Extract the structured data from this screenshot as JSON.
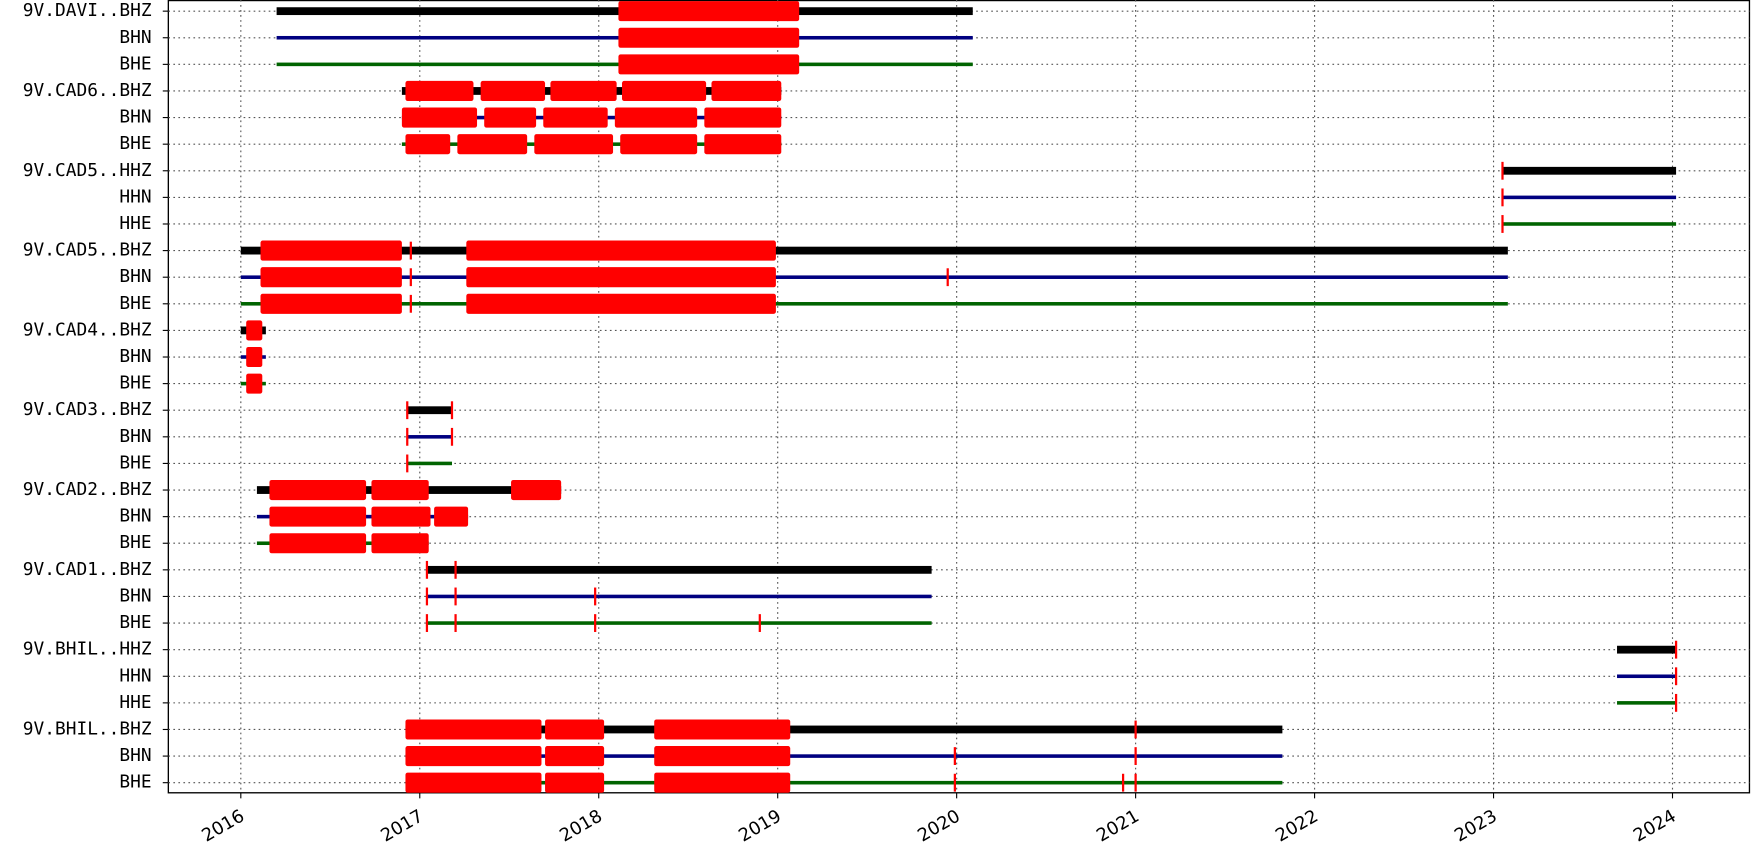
{
  "chart_data": {
    "type": "timeline",
    "xlim": [
      2015.595,
      2024.43
    ],
    "xticks": [
      2016,
      2017,
      2018,
      2019,
      2020,
      2021,
      2022,
      2023,
      2024
    ],
    "grid": true,
    "gap_color": "#ff0000",
    "rows": [
      {
        "label": "9V.DAVI..BHZ",
        "color": "#000000",
        "segments": [
          [
            2016.2,
            2020.09
          ]
        ],
        "gaps": [
          [
            2018.11,
            2019.12
          ]
        ]
      },
      {
        "label": "BHN",
        "color": "#000080",
        "segments": [
          [
            2016.2,
            2020.09
          ]
        ],
        "gaps": [
          [
            2018.11,
            2019.12
          ]
        ]
      },
      {
        "label": "BHE",
        "color": "#006400",
        "segments": [
          [
            2016.2,
            2020.09
          ]
        ],
        "gaps": [
          [
            2018.11,
            2019.12
          ]
        ]
      },
      {
        "label": "9V.CAD6..BHZ",
        "color": "#000000",
        "segments": [
          [
            2016.9,
            2019.02
          ]
        ],
        "gaps": [
          [
            2016.92,
            2017.3
          ],
          [
            2017.34,
            2017.7
          ],
          [
            2017.73,
            2018.1
          ],
          [
            2018.13,
            2018.6
          ],
          [
            2018.63,
            2019.02
          ]
        ]
      },
      {
        "label": "BHN",
        "color": "#000080",
        "segments": [
          [
            2016.9,
            2019.02
          ]
        ],
        "gaps": [
          [
            2016.9,
            2017.32
          ],
          [
            2017.36,
            2017.65
          ],
          [
            2017.69,
            2018.05
          ],
          [
            2018.09,
            2018.55
          ],
          [
            2018.59,
            2019.02
          ]
        ]
      },
      {
        "label": "BHE",
        "color": "#006400",
        "segments": [
          [
            2016.9,
            2019.02
          ]
        ],
        "gaps": [
          [
            2016.92,
            2017.17
          ],
          [
            2017.21,
            2017.6
          ],
          [
            2017.64,
            2018.08
          ],
          [
            2018.12,
            2018.55
          ],
          [
            2018.59,
            2019.02
          ]
        ]
      },
      {
        "label": "9V.CAD5..HHZ",
        "color": "#000000",
        "segments": [
          [
            2023.05,
            2024.02
          ]
        ],
        "gaps": [
          [
            2023.05,
            2023.05
          ]
        ]
      },
      {
        "label": "HHN",
        "color": "#000080",
        "segments": [
          [
            2023.05,
            2024.02
          ]
        ],
        "gaps": [
          [
            2023.05,
            2023.05
          ]
        ]
      },
      {
        "label": "HHE",
        "color": "#006400",
        "segments": [
          [
            2023.05,
            2024.02
          ]
        ],
        "gaps": [
          [
            2023.05,
            2023.05
          ]
        ]
      },
      {
        "label": "9V.CAD5..BHZ",
        "color": "#000000",
        "segments": [
          [
            2016.0,
            2023.08
          ]
        ],
        "gaps": [
          [
            2016.11,
            2016.9
          ],
          [
            2016.95,
            2016.95
          ],
          [
            2017.26,
            2018.99
          ]
        ]
      },
      {
        "label": "BHN",
        "color": "#000080",
        "segments": [
          [
            2016.0,
            2023.08
          ]
        ],
        "gaps": [
          [
            2016.11,
            2016.9
          ],
          [
            2016.95,
            2016.95
          ],
          [
            2017.26,
            2018.99
          ],
          [
            2019.95,
            2019.95
          ]
        ]
      },
      {
        "label": "BHE",
        "color": "#006400",
        "segments": [
          [
            2016.0,
            2023.08
          ]
        ],
        "gaps": [
          [
            2016.11,
            2016.9
          ],
          [
            2016.95,
            2016.95
          ],
          [
            2017.26,
            2018.99
          ]
        ]
      },
      {
        "label": "9V.CAD4..BHZ",
        "color": "#000000",
        "segments": [
          [
            2016.0,
            2016.14
          ]
        ],
        "gaps": [
          [
            2016.03,
            2016.12
          ]
        ]
      },
      {
        "label": "BHN",
        "color": "#000080",
        "segments": [
          [
            2016.0,
            2016.14
          ]
        ],
        "gaps": [
          [
            2016.03,
            2016.12
          ]
        ]
      },
      {
        "label": "BHE",
        "color": "#006400",
        "segments": [
          [
            2016.0,
            2016.14
          ]
        ],
        "gaps": [
          [
            2016.03,
            2016.12
          ]
        ]
      },
      {
        "label": "9V.CAD3..BHZ",
        "color": "#000000",
        "segments": [
          [
            2016.93,
            2017.18
          ]
        ],
        "gaps": [
          [
            2016.93,
            2016.93
          ],
          [
            2017.18,
            2017.18
          ]
        ]
      },
      {
        "label": "BHN",
        "color": "#000080",
        "segments": [
          [
            2016.93,
            2017.18
          ]
        ],
        "gaps": [
          [
            2016.93,
            2016.93
          ],
          [
            2017.18,
            2017.18
          ]
        ]
      },
      {
        "label": "BHE",
        "color": "#006400",
        "segments": [
          [
            2016.93,
            2017.18
          ]
        ],
        "gaps": [
          [
            2016.93,
            2016.93
          ]
        ]
      },
      {
        "label": "9V.CAD2..BHZ",
        "color": "#000000",
        "segments": [
          [
            2016.09,
            2017.79
          ]
        ],
        "gaps": [
          [
            2016.16,
            2016.7
          ],
          [
            2016.73,
            2017.05
          ],
          [
            2017.51,
            2017.79
          ]
        ]
      },
      {
        "label": "BHN",
        "color": "#000080",
        "segments": [
          [
            2016.09,
            2017.27
          ]
        ],
        "gaps": [
          [
            2016.16,
            2016.7
          ],
          [
            2016.73,
            2017.06
          ],
          [
            2017.08,
            2017.27
          ]
        ]
      },
      {
        "label": "BHE",
        "color": "#006400",
        "segments": [
          [
            2016.09,
            2017.05
          ]
        ],
        "gaps": [
          [
            2016.16,
            2016.7
          ],
          [
            2016.73,
            2017.05
          ]
        ]
      },
      {
        "label": "9V.CAD1..BHZ",
        "color": "#000000",
        "segments": [
          [
            2017.04,
            2019.86
          ]
        ],
        "gaps": [
          [
            2017.04,
            2017.04
          ],
          [
            2017.2,
            2017.2
          ]
        ]
      },
      {
        "label": "BHN",
        "color": "#000080",
        "segments": [
          [
            2017.04,
            2019.86
          ]
        ],
        "gaps": [
          [
            2017.04,
            2017.04
          ],
          [
            2017.2,
            2017.2
          ],
          [
            2017.98,
            2017.98
          ]
        ]
      },
      {
        "label": "BHE",
        "color": "#006400",
        "segments": [
          [
            2017.04,
            2019.86
          ]
        ],
        "gaps": [
          [
            2017.04,
            2017.04
          ],
          [
            2017.2,
            2017.2
          ],
          [
            2017.98,
            2017.98
          ],
          [
            2018.9,
            2018.9
          ]
        ]
      },
      {
        "label": "9V.BHIL..HHZ",
        "color": "#000000",
        "segments": [
          [
            2023.69,
            2024.02
          ]
        ],
        "gaps": [
          [
            2024.02,
            2024.02
          ]
        ]
      },
      {
        "label": "HHN",
        "color": "#000080",
        "segments": [
          [
            2023.69,
            2024.02
          ]
        ],
        "gaps": [
          [
            2024.02,
            2024.02
          ]
        ]
      },
      {
        "label": "HHE",
        "color": "#006400",
        "segments": [
          [
            2023.69,
            2024.02
          ]
        ],
        "gaps": [
          [
            2024.02,
            2024.02
          ]
        ]
      },
      {
        "label": "9V.BHIL..BHZ",
        "color": "#000000",
        "segments": [
          [
            2016.92,
            2021.82
          ]
        ],
        "gaps": [
          [
            2016.92,
            2017.68
          ],
          [
            2017.7,
            2018.03
          ],
          [
            2018.31,
            2019.07
          ],
          [
            2021.0,
            2021.0
          ]
        ]
      },
      {
        "label": "BHN",
        "color": "#000080",
        "segments": [
          [
            2016.92,
            2021.82
          ]
        ],
        "gaps": [
          [
            2016.92,
            2017.68
          ],
          [
            2017.7,
            2018.03
          ],
          [
            2018.31,
            2019.07
          ],
          [
            2019.99,
            2019.99
          ],
          [
            2021.0,
            2021.0
          ]
        ]
      },
      {
        "label": "BHE",
        "color": "#006400",
        "segments": [
          [
            2016.92,
            2021.82
          ]
        ],
        "gaps": [
          [
            2016.92,
            2017.68
          ],
          [
            2017.7,
            2018.03
          ],
          [
            2018.31,
            2019.07
          ],
          [
            2019.99,
            2019.99
          ],
          [
            2020.93,
            2020.93
          ],
          [
            2021.0,
            2021.0
          ]
        ]
      }
    ]
  }
}
